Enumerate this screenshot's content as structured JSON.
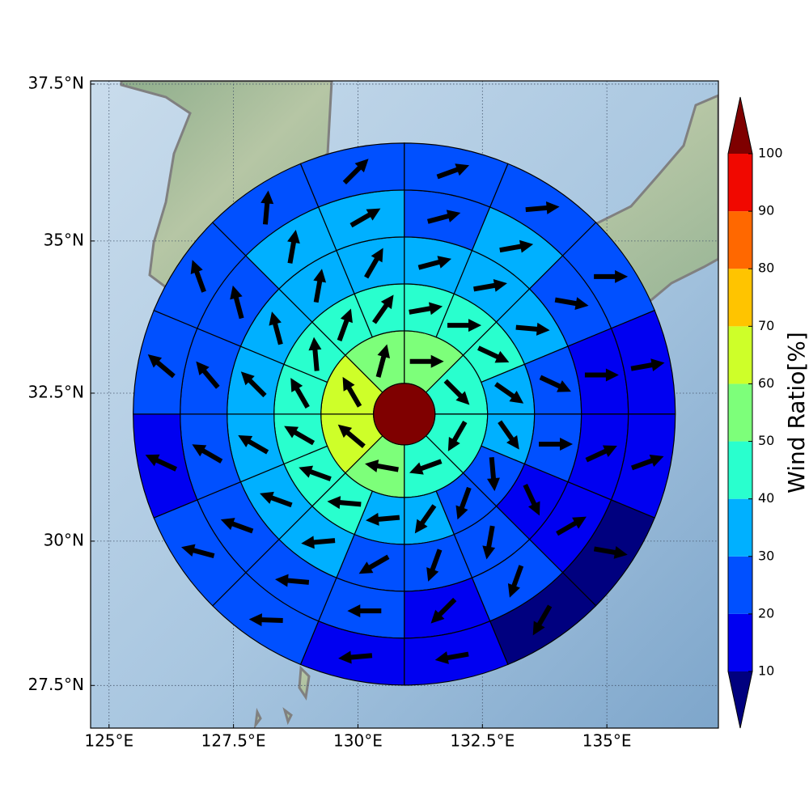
{
  "chart_data": {
    "type": "polar-sector-map",
    "xlim": [
      124.63,
      137.24
    ],
    "ylim": [
      26.75,
      37.55
    ],
    "projection": "mercator",
    "xticks": [
      {
        "value": 125,
        "label": "125°E"
      },
      {
        "value": 127.5,
        "label": "127.5°E"
      },
      {
        "value": 130,
        "label": "130°E"
      },
      {
        "value": 132.5,
        "label": "132.5°E"
      },
      {
        "value": 135,
        "label": "135°E"
      }
    ],
    "yticks": [
      {
        "value": 27.5,
        "label": "27.5°N"
      },
      {
        "value": 30,
        "label": "30°N"
      },
      {
        "value": 32.5,
        "label": "32.5°N"
      },
      {
        "value": 35,
        "label": "35°N"
      },
      {
        "value": 37.5,
        "label": "37.5°N"
      }
    ],
    "grid": true,
    "center": {
      "lon": 130.93,
      "lat": 32.15
    },
    "center_value": 105,
    "rings": [
      {
        "values": [
          55,
          45,
          45,
          45,
          55,
          65,
          65,
          55
        ],
        "directions": [
          90,
          135,
          210,
          250,
          280,
          310,
          330,
          15
        ]
      },
      {
        "values": [
          45,
          45,
          45,
          35,
          35,
          25,
          25,
          35,
          35,
          45,
          45,
          45,
          45,
          45,
          45,
          45
        ],
        "directions": [
          80,
          90,
          115,
          125,
          145,
          175,
          200,
          215,
          265,
          275,
          290,
          300,
          330,
          355,
          20,
          35
        ]
      },
      {
        "values": [
          35,
          35,
          35,
          25,
          25,
          15,
          25,
          25,
          25,
          35,
          35,
          35,
          35,
          35,
          35,
          35
        ],
        "directions": [
          75,
          80,
          95,
          115,
          90,
          155,
          190,
          200,
          240,
          265,
          290,
          300,
          315,
          345,
          10,
          30
        ]
      },
      {
        "values": [
          25,
          35,
          25,
          15,
          15,
          15,
          25,
          15,
          25,
          25,
          25,
          25,
          25,
          25,
          35,
          35
        ],
        "directions": [
          75,
          80,
          100,
          90,
          65,
          60,
          200,
          225,
          270,
          275,
          290,
          300,
          320,
          345,
          10,
          60
        ]
      },
      {
        "values": [
          25,
          25,
          25,
          15,
          15,
          5,
          5,
          15,
          15,
          25,
          25,
          15,
          25,
          25,
          25,
          25
        ],
        "directions": [
          70,
          85,
          90,
          80,
          70,
          100,
          210,
          260,
          265,
          272,
          285,
          295,
          310,
          340,
          5,
          45
        ]
      }
    ],
    "colorbar": {
      "label": "Wind Ratio[%]",
      "ticks": [
        10,
        20,
        30,
        40,
        50,
        60,
        70,
        80,
        90,
        100
      ],
      "colors": [
        "#00007f",
        "#0000f1",
        "#0050ff",
        "#00b0ff",
        "#29ffce",
        "#7dff7a",
        "#ceff29",
        "#ffc400",
        "#ff6800",
        "#f10800",
        "#7f0000"
      ],
      "extend": "both"
    }
  }
}
